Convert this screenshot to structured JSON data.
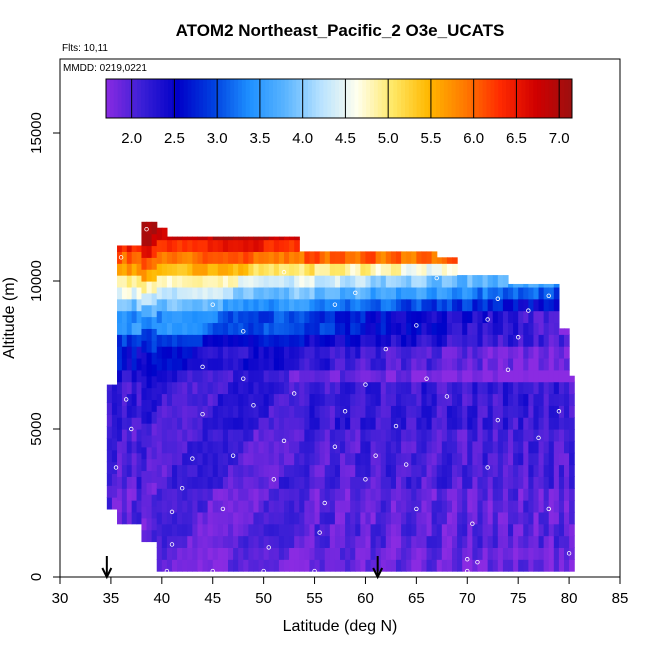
{
  "chart_data": {
    "type": "heatmap",
    "title": "ATOM2 Northeast_Pacific_2 O3e_UCATS",
    "flights_label": "Flts: 10,11",
    "dates_label": "MMDD: 0219,0221",
    "xlabel": "Latitude (deg N)",
    "ylabel": "Altitude (m)",
    "xlim": [
      30,
      85
    ],
    "ylim": [
      0,
      17500
    ],
    "x_ticks": [
      "30",
      "35",
      "40",
      "45",
      "50",
      "55",
      "60",
      "65",
      "70",
      "75",
      "80",
      "85"
    ],
    "x_tick_values": [
      30,
      35,
      40,
      45,
      50,
      55,
      60,
      65,
      70,
      75,
      80,
      85
    ],
    "y_ticks": [
      "0",
      "5000",
      "10000",
      "15000"
    ],
    "y_tick_values": [
      0,
      5000,
      10000,
      15000
    ],
    "colorbar": {
      "range": [
        1.7,
        7.15
      ],
      "tick_labels": [
        "2.0",
        "2.5",
        "3.0",
        "3.5",
        "4.0",
        "4.5",
        "5.0",
        "5.5",
        "6.0",
        "6.5",
        "7.0"
      ],
      "tick_values": [
        2.0,
        2.5,
        3.0,
        3.5,
        4.0,
        4.5,
        5.0,
        5.5,
        6.0,
        6.5,
        7.0
      ],
      "colors": [
        "#8a2be2",
        "#3b1fd6",
        "#0000c8",
        "#0040e0",
        "#1e90ff",
        "#5ab4ff",
        "#b8e2ff",
        "#ffffee",
        "#ffe866",
        "#ffb800",
        "#ff7a00",
        "#ff2a00",
        "#d00000",
        "#9c1010"
      ]
    },
    "flight_arrows_x": [
      34.6,
      61.2
    ],
    "columns": [
      {
        "x0": 34.6,
        "x1": 35.6,
        "top": 6500,
        "bottom": 2300
      },
      {
        "x0": 35.6,
        "x1": 38.0,
        "top": 11200,
        "bottom": 1800
      },
      {
        "x0": 38.0,
        "x1": 39.5,
        "top": 12000,
        "bottom": 1200
      },
      {
        "x0": 39.5,
        "x1": 40.5,
        "top": 11800,
        "bottom": 200
      },
      {
        "x0": 40.5,
        "x1": 53.5,
        "top": 11500,
        "bottom": 200
      },
      {
        "x0": 53.5,
        "x1": 67.0,
        "top": 11000,
        "bottom": 200
      },
      {
        "x0": 67.0,
        "x1": 69.0,
        "top": 10800,
        "bottom": 200
      },
      {
        "x0": 69.0,
        "x1": 74.0,
        "top": 10200,
        "bottom": 200
      },
      {
        "x0": 74.0,
        "x1": 79.0,
        "top": 9900,
        "bottom": 200
      },
      {
        "x0": 79.0,
        "x1": 80.0,
        "top": 8400,
        "bottom": 200
      },
      {
        "x0": 80.0,
        "x1": 80.5,
        "top": 6800,
        "bottom": 200
      }
    ],
    "profile": [
      {
        "alt_top": 1000,
        "value": 1.85
      },
      {
        "alt_top": 3000,
        "value": 1.95
      },
      {
        "alt_top": 5000,
        "value": 2.05
      },
      {
        "alt_top": 6800,
        "value": 2.15
      },
      {
        "alt_top": 7600,
        "value": 2.4
      },
      {
        "alt_top": 8300,
        "value": 2.7
      },
      {
        "alt_top": 8800,
        "value": 3.2
      },
      {
        "alt_top": 9200,
        "value": 3.7
      },
      {
        "alt_top": 9600,
        "value": 4.2
      },
      {
        "alt_top": 10000,
        "value": 4.7
      },
      {
        "alt_top": 10400,
        "value": 5.4
      },
      {
        "alt_top": 10800,
        "value": 6.0
      },
      {
        "alt_top": 11200,
        "value": 6.4
      },
      {
        "alt_top": 12000,
        "value": 6.9
      }
    ],
    "obs_points": [
      [
        36,
        10800
      ],
      [
        37.5,
        11800
      ],
      [
        38.5,
        11750
      ],
      [
        36.5,
        6000
      ],
      [
        37,
        5000
      ],
      [
        35.5,
        3700
      ],
      [
        40.5,
        200
      ],
      [
        41,
        1100
      ],
      [
        41,
        2200
      ],
      [
        42,
        3000
      ],
      [
        43,
        4000
      ],
      [
        44,
        5500
      ],
      [
        45,
        200
      ],
      [
        46,
        2300
      ],
      [
        47,
        4100
      ],
      [
        48,
        6700
      ],
      [
        49,
        5800
      ],
      [
        50,
        200
      ],
      [
        50.5,
        1000
      ],
      [
        51,
        3300
      ],
      [
        52,
        4600
      ],
      [
        53,
        6200
      ],
      [
        55,
        200
      ],
      [
        55.5,
        1500
      ],
      [
        56,
        2500
      ],
      [
        57,
        4400
      ],
      [
        58,
        5600
      ],
      [
        59,
        9600
      ],
      [
        60,
        3300
      ],
      [
        61,
        4100
      ],
      [
        62,
        7700
      ],
      [
        63,
        5100
      ],
      [
        64,
        3800
      ],
      [
        65,
        2300
      ],
      [
        66,
        6700
      ],
      [
        67,
        10100
      ],
      [
        70,
        200
      ],
      [
        70,
        600
      ],
      [
        71,
        500
      ],
      [
        70.5,
        1800
      ],
      [
        72,
        3700
      ],
      [
        73,
        5300
      ],
      [
        74,
        7000
      ],
      [
        75,
        8100
      ],
      [
        76,
        9000
      ],
      [
        77,
        4700
      ],
      [
        78,
        2300
      ],
      [
        79,
        5600
      ],
      [
        80,
        800
      ],
      [
        45,
        9200
      ],
      [
        52,
        10300
      ],
      [
        57,
        9200
      ],
      [
        65,
        8500
      ],
      [
        73,
        9400
      ],
      [
        44,
        7100
      ],
      [
        48,
        8300
      ],
      [
        60,
        6500
      ],
      [
        68,
        6100
      ],
      [
        72,
        8700
      ],
      [
        78,
        9500
      ]
    ]
  }
}
